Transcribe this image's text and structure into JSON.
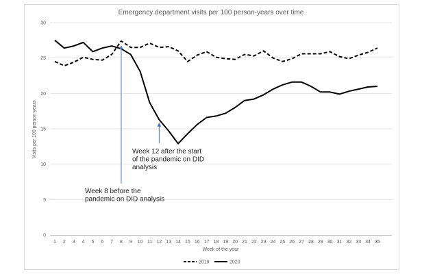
{
  "chart_data": {
    "type": "line",
    "title": "Emergency department visits per 100 person-years over time",
    "xlabel": "Week of the year",
    "ylabel": "Visits per 100 person-years",
    "categories": [
      "1",
      "2",
      "3",
      "4",
      "5",
      "6",
      "7",
      "8",
      "9",
      "10",
      "11",
      "12",
      "13",
      "14",
      "15",
      "16",
      "17",
      "18",
      "19",
      "20",
      "21",
      "22",
      "23",
      "24",
      "25",
      "26",
      "27",
      "28",
      "29",
      "30",
      "31",
      "32",
      "33",
      "34",
      "35"
    ],
    "ylim": [
      0,
      30
    ],
    "yticks": [
      "0",
      "5",
      "10",
      "15",
      "20",
      "25",
      "30"
    ],
    "series": [
      {
        "name": "2019",
        "style": "dashed",
        "color": "#000000",
        "values": [
          24.5,
          23.9,
          24.4,
          25.1,
          24.8,
          24.7,
          25.5,
          27.4,
          26.5,
          26.5,
          27.1,
          26.5,
          26.6,
          26.0,
          24.5,
          25.4,
          25.9,
          25.1,
          24.9,
          24.8,
          25.5,
          25.3,
          26.0,
          25.0,
          24.5,
          24.9,
          25.6,
          25.6,
          25.6,
          25.9,
          25.2,
          24.9,
          25.4,
          25.8,
          26.4
        ]
      },
      {
        "name": "2020",
        "style": "solid",
        "color": "#000000",
        "values": [
          27.5,
          26.4,
          26.7,
          27.2,
          25.9,
          26.4,
          26.7,
          26.3,
          25.5,
          23.1,
          18.7,
          16.3,
          14.7,
          12.9,
          14.3,
          15.6,
          16.6,
          16.8,
          17.2,
          18.0,
          19.0,
          19.2,
          19.8,
          20.6,
          21.2,
          21.6,
          21.6,
          21.0,
          20.2,
          20.2,
          19.9,
          20.3,
          20.6,
          20.9,
          21.0
        ]
      }
    ],
    "annotations": [
      {
        "lines": [
          "Week 12 after the start",
          "of the pandemic on DID",
          "analysis"
        ],
        "arrow_week": 12,
        "arrow_value": 15.9
      },
      {
        "lines": [
          "Week 8 before the",
          "pandemic on DID analysis"
        ],
        "arrow_week": 8,
        "arrow_value": 26.8
      }
    ],
    "legend_position": "bottom"
  }
}
